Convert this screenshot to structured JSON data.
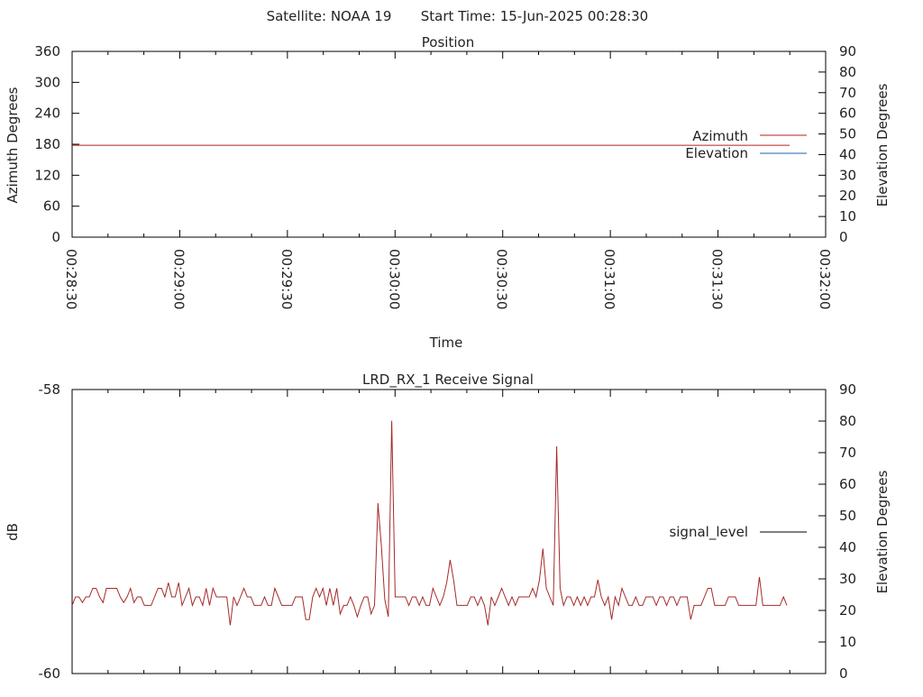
{
  "header": {
    "satellite": "Satellite: NOAA 19",
    "start_time": "Start Time: 15-Jun-2025 00:28:30"
  },
  "colors": {
    "azimuth": "#b22222",
    "elevation": "#1f5fa8",
    "signal_line": "#a52a2a",
    "signal_legend": "#000000"
  },
  "chart_data": [
    {
      "type": "line",
      "title": "Position",
      "xlabel": "Time",
      "ylabel": "Azimuth Degrees",
      "y2label": "Elevation Degrees",
      "ylim": [
        0,
        360
      ],
      "yticks": [
        "0",
        "60",
        "120",
        "180",
        "240",
        "300",
        "360"
      ],
      "y2lim": [
        0,
        90
      ],
      "y2ticks": [
        "0",
        "10",
        "20",
        "30",
        "40",
        "50",
        "60",
        "70",
        "80",
        "90"
      ],
      "x_tick_labels": [
        "00:28:30",
        "00:29:00",
        "00:29:30",
        "00:30:00",
        "00:30:30",
        "00:31:00",
        "00:31:30",
        "00:32:00"
      ],
      "legend_position": "right",
      "series": [
        {
          "name": "Azimuth",
          "axis": "left",
          "x": [
            "00:28:30",
            "00:31:50"
          ],
          "values": [
            178,
            178
          ]
        },
        {
          "name": "Elevation",
          "axis": "right",
          "x": [],
          "values": []
        }
      ]
    },
    {
      "type": "line",
      "title": "LRD_RX_1 Receive Signal",
      "ylabel": "dB",
      "y2label": "Elevation Degrees",
      "ytick_labels": [
        "-60",
        "-58"
      ],
      "y2lim": [
        0,
        90
      ],
      "y2ticks": [
        "0",
        "10",
        "20",
        "30",
        "40",
        "50",
        "60",
        "70",
        "80",
        "90"
      ],
      "legend_position": "right",
      "series": [
        {
          "name": "signal_level",
          "axis": "left",
          "note_units": "fraction of axis height from -60 (0) to -58 (1)",
          "values": [
            0.24,
            0.27,
            0.27,
            0.25,
            0.27,
            0.27,
            0.3,
            0.3,
            0.27,
            0.25,
            0.3,
            0.3,
            0.3,
            0.3,
            0.27,
            0.25,
            0.27,
            0.3,
            0.25,
            0.27,
            0.27,
            0.24,
            0.24,
            0.24,
            0.27,
            0.3,
            0.3,
            0.27,
            0.32,
            0.27,
            0.27,
            0.32,
            0.24,
            0.27,
            0.3,
            0.24,
            0.27,
            0.27,
            0.24,
            0.3,
            0.24,
            0.3,
            0.27,
            0.27,
            0.27,
            0.27,
            0.17,
            0.27,
            0.24,
            0.27,
            0.3,
            0.27,
            0.27,
            0.24,
            0.24,
            0.24,
            0.27,
            0.24,
            0.24,
            0.3,
            0.27,
            0.24,
            0.24,
            0.24,
            0.24,
            0.27,
            0.27,
            0.27,
            0.19,
            0.19,
            0.27,
            0.3,
            0.27,
            0.3,
            0.24,
            0.3,
            0.24,
            0.3,
            0.21,
            0.24,
            0.24,
            0.27,
            0.24,
            0.2,
            0.24,
            0.27,
            0.27,
            0.21,
            0.24,
            0.6,
            0.45,
            0.26,
            0.2,
            0.89,
            0.27,
            0.27,
            0.27,
            0.27,
            0.24,
            0.27,
            0.27,
            0.24,
            0.27,
            0.24,
            0.24,
            0.3,
            0.27,
            0.24,
            0.27,
            0.32,
            0.4,
            0.33,
            0.24,
            0.24,
            0.24,
            0.24,
            0.27,
            0.27,
            0.24,
            0.27,
            0.24,
            0.17,
            0.27,
            0.24,
            0.27,
            0.3,
            0.27,
            0.24,
            0.27,
            0.24,
            0.27,
            0.27,
            0.27,
            0.27,
            0.3,
            0.27,
            0.33,
            0.44,
            0.3,
            0.27,
            0.24,
            0.8,
            0.3,
            0.24,
            0.27,
            0.27,
            0.24,
            0.27,
            0.24,
            0.27,
            0.24,
            0.27,
            0.27,
            0.33,
            0.27,
            0.24,
            0.27,
            0.19,
            0.27,
            0.24,
            0.3,
            0.27,
            0.24,
            0.24,
            0.27,
            0.24,
            0.24,
            0.27,
            0.27,
            0.27,
            0.24,
            0.27,
            0.27,
            0.24,
            0.27,
            0.27,
            0.24,
            0.27,
            0.27,
            0.27,
            0.19,
            0.24,
            0.24,
            0.24,
            0.27,
            0.3,
            0.3,
            0.24,
            0.24,
            0.24,
            0.24,
            0.27,
            0.27,
            0.27,
            0.24,
            0.24,
            0.24,
            0.24,
            0.24,
            0.24,
            0.34,
            0.24,
            0.24,
            0.24,
            0.24,
            0.24,
            0.24,
            0.27,
            0.24
          ]
        },
        {
          "name": "Elevation",
          "axis": "right",
          "x": [],
          "values": []
        }
      ]
    }
  ]
}
